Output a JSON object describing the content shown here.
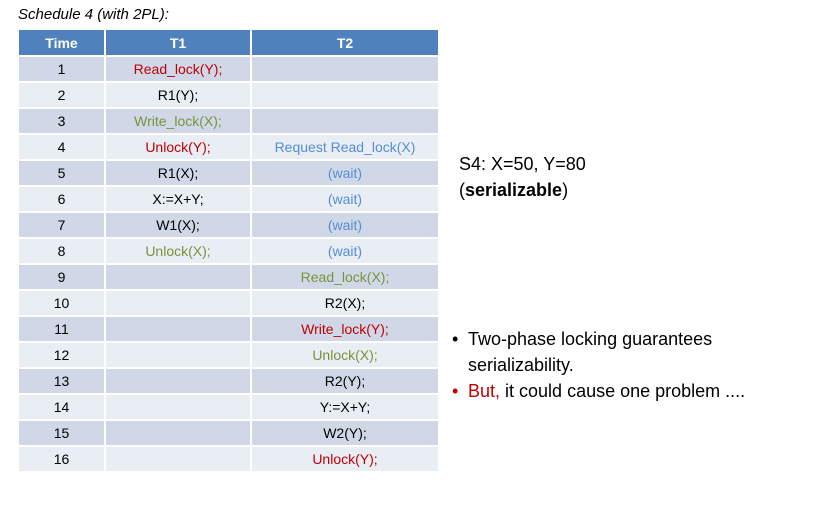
{
  "caption": "Schedule 4 (with 2PL):",
  "table": {
    "headers": [
      "Time",
      "T1",
      "T2"
    ],
    "rows": [
      {
        "time": "1",
        "t1": "Read_lock(Y);",
        "t1_color": "red",
        "t2": "",
        "t2_color": "black"
      },
      {
        "time": "2",
        "t1": "R1(Y);",
        "t1_color": "black",
        "t2": "",
        "t2_color": "black"
      },
      {
        "time": "3",
        "t1": "Write_lock(X);",
        "t1_color": "green",
        "t2": "",
        "t2_color": "black"
      },
      {
        "time": "4",
        "t1": "Unlock(Y);",
        "t1_color": "red",
        "t2": "Request Read_lock(X)",
        "t2_color": "blue"
      },
      {
        "time": "5",
        "t1": "R1(X);",
        "t1_color": "black",
        "t2": "(wait)",
        "t2_color": "blue"
      },
      {
        "time": "6",
        "t1": "X:=X+Y;",
        "t1_color": "black",
        "t2": "(wait)",
        "t2_color": "blue"
      },
      {
        "time": "7",
        "t1": "W1(X);",
        "t1_color": "black",
        "t2": "(wait)",
        "t2_color": "blue"
      },
      {
        "time": "8",
        "t1": "Unlock(X);",
        "t1_color": "green",
        "t2": "(wait)",
        "t2_color": "blue"
      },
      {
        "time": "9",
        "t1": "",
        "t1_color": "black",
        "t2": "Read_lock(X);",
        "t2_color": "green"
      },
      {
        "time": "10",
        "t1": "",
        "t1_color": "black",
        "t2": "R2(X);",
        "t2_color": "black"
      },
      {
        "time": "11",
        "t1": "",
        "t1_color": "black",
        "t2": "Write_lock(Y);",
        "t2_color": "red"
      },
      {
        "time": "12",
        "t1": "",
        "t1_color": "black",
        "t2": "Unlock(X);",
        "t2_color": "green"
      },
      {
        "time": "13",
        "t1": "",
        "t1_color": "black",
        "t2": "R2(Y);",
        "t2_color": "black"
      },
      {
        "time": "14",
        "t1": "",
        "t1_color": "black",
        "t2": "Y:=X+Y;",
        "t2_color": "black"
      },
      {
        "time": "15",
        "t1": "",
        "t1_color": "black",
        "t2": "W2(Y);",
        "t2_color": "black"
      },
      {
        "time": "16",
        "t1": "",
        "t1_color": "black",
        "t2": "Unlock(Y);",
        "t2_color": "red"
      }
    ]
  },
  "result": {
    "line1": "S4: X=50, Y=80",
    "open_paren": "(",
    "bold_word": "serializable",
    "close_paren": ")"
  },
  "bullets": {
    "bullet1_line1": "Two-phase locking guarantees",
    "bullet1_line2": "serializability.",
    "bullet2_red": "But,",
    "bullet2_rest": " it could cause one problem ...."
  },
  "colors": {
    "header_bg": "#4f81bd",
    "row_odd": "#d0d8e8",
    "row_even": "#e9edf4",
    "red": "#c00000",
    "green": "#77933c",
    "blue": "#558ed5"
  }
}
